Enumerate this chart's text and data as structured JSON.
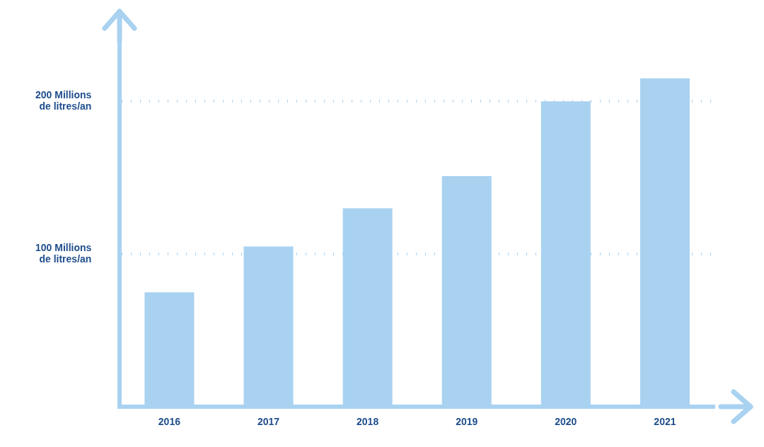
{
  "chart_data": {
    "type": "bar",
    "categories": [
      "2016",
      "2017",
      "2018",
      "2019",
      "2020",
      "2021"
    ],
    "values": [
      75,
      105,
      130,
      151,
      200,
      215
    ],
    "color": "#a9d2f1",
    "ylim": [
      0,
      240
    ],
    "yticks": [
      {
        "value": 100,
        "label": "100 Millions\nde litres/an"
      },
      {
        "value": 200,
        "label": "200 Millions\nde litres/an"
      }
    ],
    "grid": "y",
    "legend": false
  }
}
